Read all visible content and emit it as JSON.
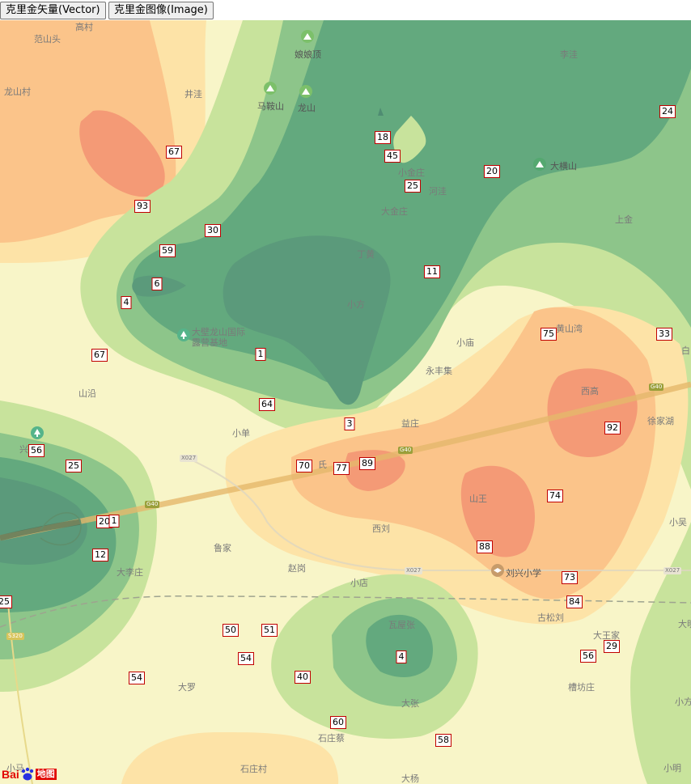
{
  "toolbar": {
    "vector_button": "克里金矢量(Vector)",
    "image_button": "克里金图像(Image)"
  },
  "map": {
    "places": [
      {
        "id": "gaocun",
        "text": "高村"
      },
      {
        "id": "fanshantou",
        "text": "范山头"
      },
      {
        "id": "longshancun",
        "text": "龙山村"
      },
      {
        "id": "niangniangding",
        "text": "娘娘顶"
      },
      {
        "id": "jingwa",
        "text": "井洼"
      },
      {
        "id": "maanshan",
        "text": "马鞍山"
      },
      {
        "id": "longshan",
        "text": "龙山"
      },
      {
        "id": "liwa",
        "text": "李洼"
      },
      {
        "id": "xiaojinzhuang",
        "text": "小金庄"
      },
      {
        "id": "hehezhuang",
        "text": "河洼"
      },
      {
        "id": "dahengshan",
        "text": "大横山"
      },
      {
        "id": "dajinzhuang",
        "text": "大金庄"
      },
      {
        "id": "dinghuang",
        "text": "丁黄"
      },
      {
        "id": "shangzhuang",
        "text": "上金"
      },
      {
        "id": "xiaofang",
        "text": "小方"
      },
      {
        "id": "camp1",
        "text": "大壁龙山国际"
      },
      {
        "id": "camp2",
        "text": "露营基地"
      },
      {
        "id": "xiaomiao",
        "text": "小庙"
      },
      {
        "id": "yongfengji",
        "text": "永丰集"
      },
      {
        "id": "huangshanqiao",
        "text": "黄山湾"
      },
      {
        "id": "shangou",
        "text": "山沿"
      },
      {
        "id": "xigao",
        "text": "西高"
      },
      {
        "id": "xujiahu",
        "text": "徐家湖"
      },
      {
        "id": "xiaoshan",
        "text": "小单"
      },
      {
        "id": "yizhuang",
        "text": "益庄"
      },
      {
        "id": "xingyuan",
        "text": "兴 园"
      },
      {
        "id": "shanwang",
        "text": "山王"
      },
      {
        "id": "xiliu",
        "text": "西刘"
      },
      {
        "id": "lujia",
        "text": "鲁家"
      },
      {
        "id": "daliwan",
        "text": "大李庄"
      },
      {
        "id": "zhaogang",
        "text": "赵岗"
      },
      {
        "id": "xiaodian",
        "text": "小店"
      },
      {
        "id": "liuxing",
        "text": "刘兴小学"
      },
      {
        "id": "gusongliu",
        "text": "古松刘"
      },
      {
        "id": "wawuzhang",
        "text": "瓦屋张"
      },
      {
        "id": "dawang",
        "text": "大王家"
      },
      {
        "id": "dali",
        "text": "大罗"
      },
      {
        "id": "dazhang",
        "text": "大张"
      },
      {
        "id": "caofangzhuang",
        "text": "槽坊庄"
      },
      {
        "id": "shizhuangcai",
        "text": "石庄蔡"
      },
      {
        "id": "shizhuangcun",
        "text": "石庄村"
      },
      {
        "id": "dayang",
        "text": "大杨"
      },
      {
        "id": "xiaoming",
        "text": "小明"
      },
      {
        "id": "xiaowu",
        "text": "小吴"
      },
      {
        "id": "bai",
        "text": "白"
      },
      {
        "id": "daming",
        "text": "大明"
      },
      {
        "id": "xiaofeng",
        "text": "小方"
      },
      {
        "id": "shan2",
        "text": "氏"
      },
      {
        "id": "xiaolou",
        "text": "小马"
      }
    ],
    "roads": [
      {
        "id": "g40a",
        "text": "G40"
      },
      {
        "id": "g40b",
        "text": "G40"
      },
      {
        "id": "g40c",
        "text": "G40"
      },
      {
        "id": "x027a",
        "text": "X027"
      },
      {
        "id": "x027b",
        "text": "X027"
      },
      {
        "id": "x027c",
        "text": "X027"
      },
      {
        "id": "s320",
        "text": "S320"
      }
    ],
    "poi_icons": [
      "mountain-icon",
      "mountain-icon",
      "mountain-icon",
      "mountain-icon",
      "park-icon",
      "park-icon",
      "school-icon"
    ],
    "data_labels": [
      "67",
      "93",
      "18",
      "45",
      "20",
      "24",
      "25",
      "30",
      "59",
      "6",
      "4",
      "11",
      "67",
      "1",
      "75",
      "33",
      "64",
      "3",
      "92",
      "56",
      "25",
      "70",
      "77",
      "89",
      "74",
      "20",
      "1",
      "12",
      "88",
      "73",
      "84",
      "25",
      "50",
      "51",
      "54",
      "4",
      "54",
      "40",
      "29",
      "56",
      "60",
      "58"
    ],
    "logo": {
      "text1": "Bai",
      "text2": "地图"
    },
    "colors": {
      "low_dark": "#5b9a7b",
      "low": "#63a97e",
      "mid_low": "#8dc58a",
      "mid": "#c8e39c",
      "neutral": "#f8f5c8",
      "mid_high": "#fde3a7",
      "high": "#fbc48a",
      "very_high": "#f49a76",
      "label_border": "#c00000"
    }
  }
}
